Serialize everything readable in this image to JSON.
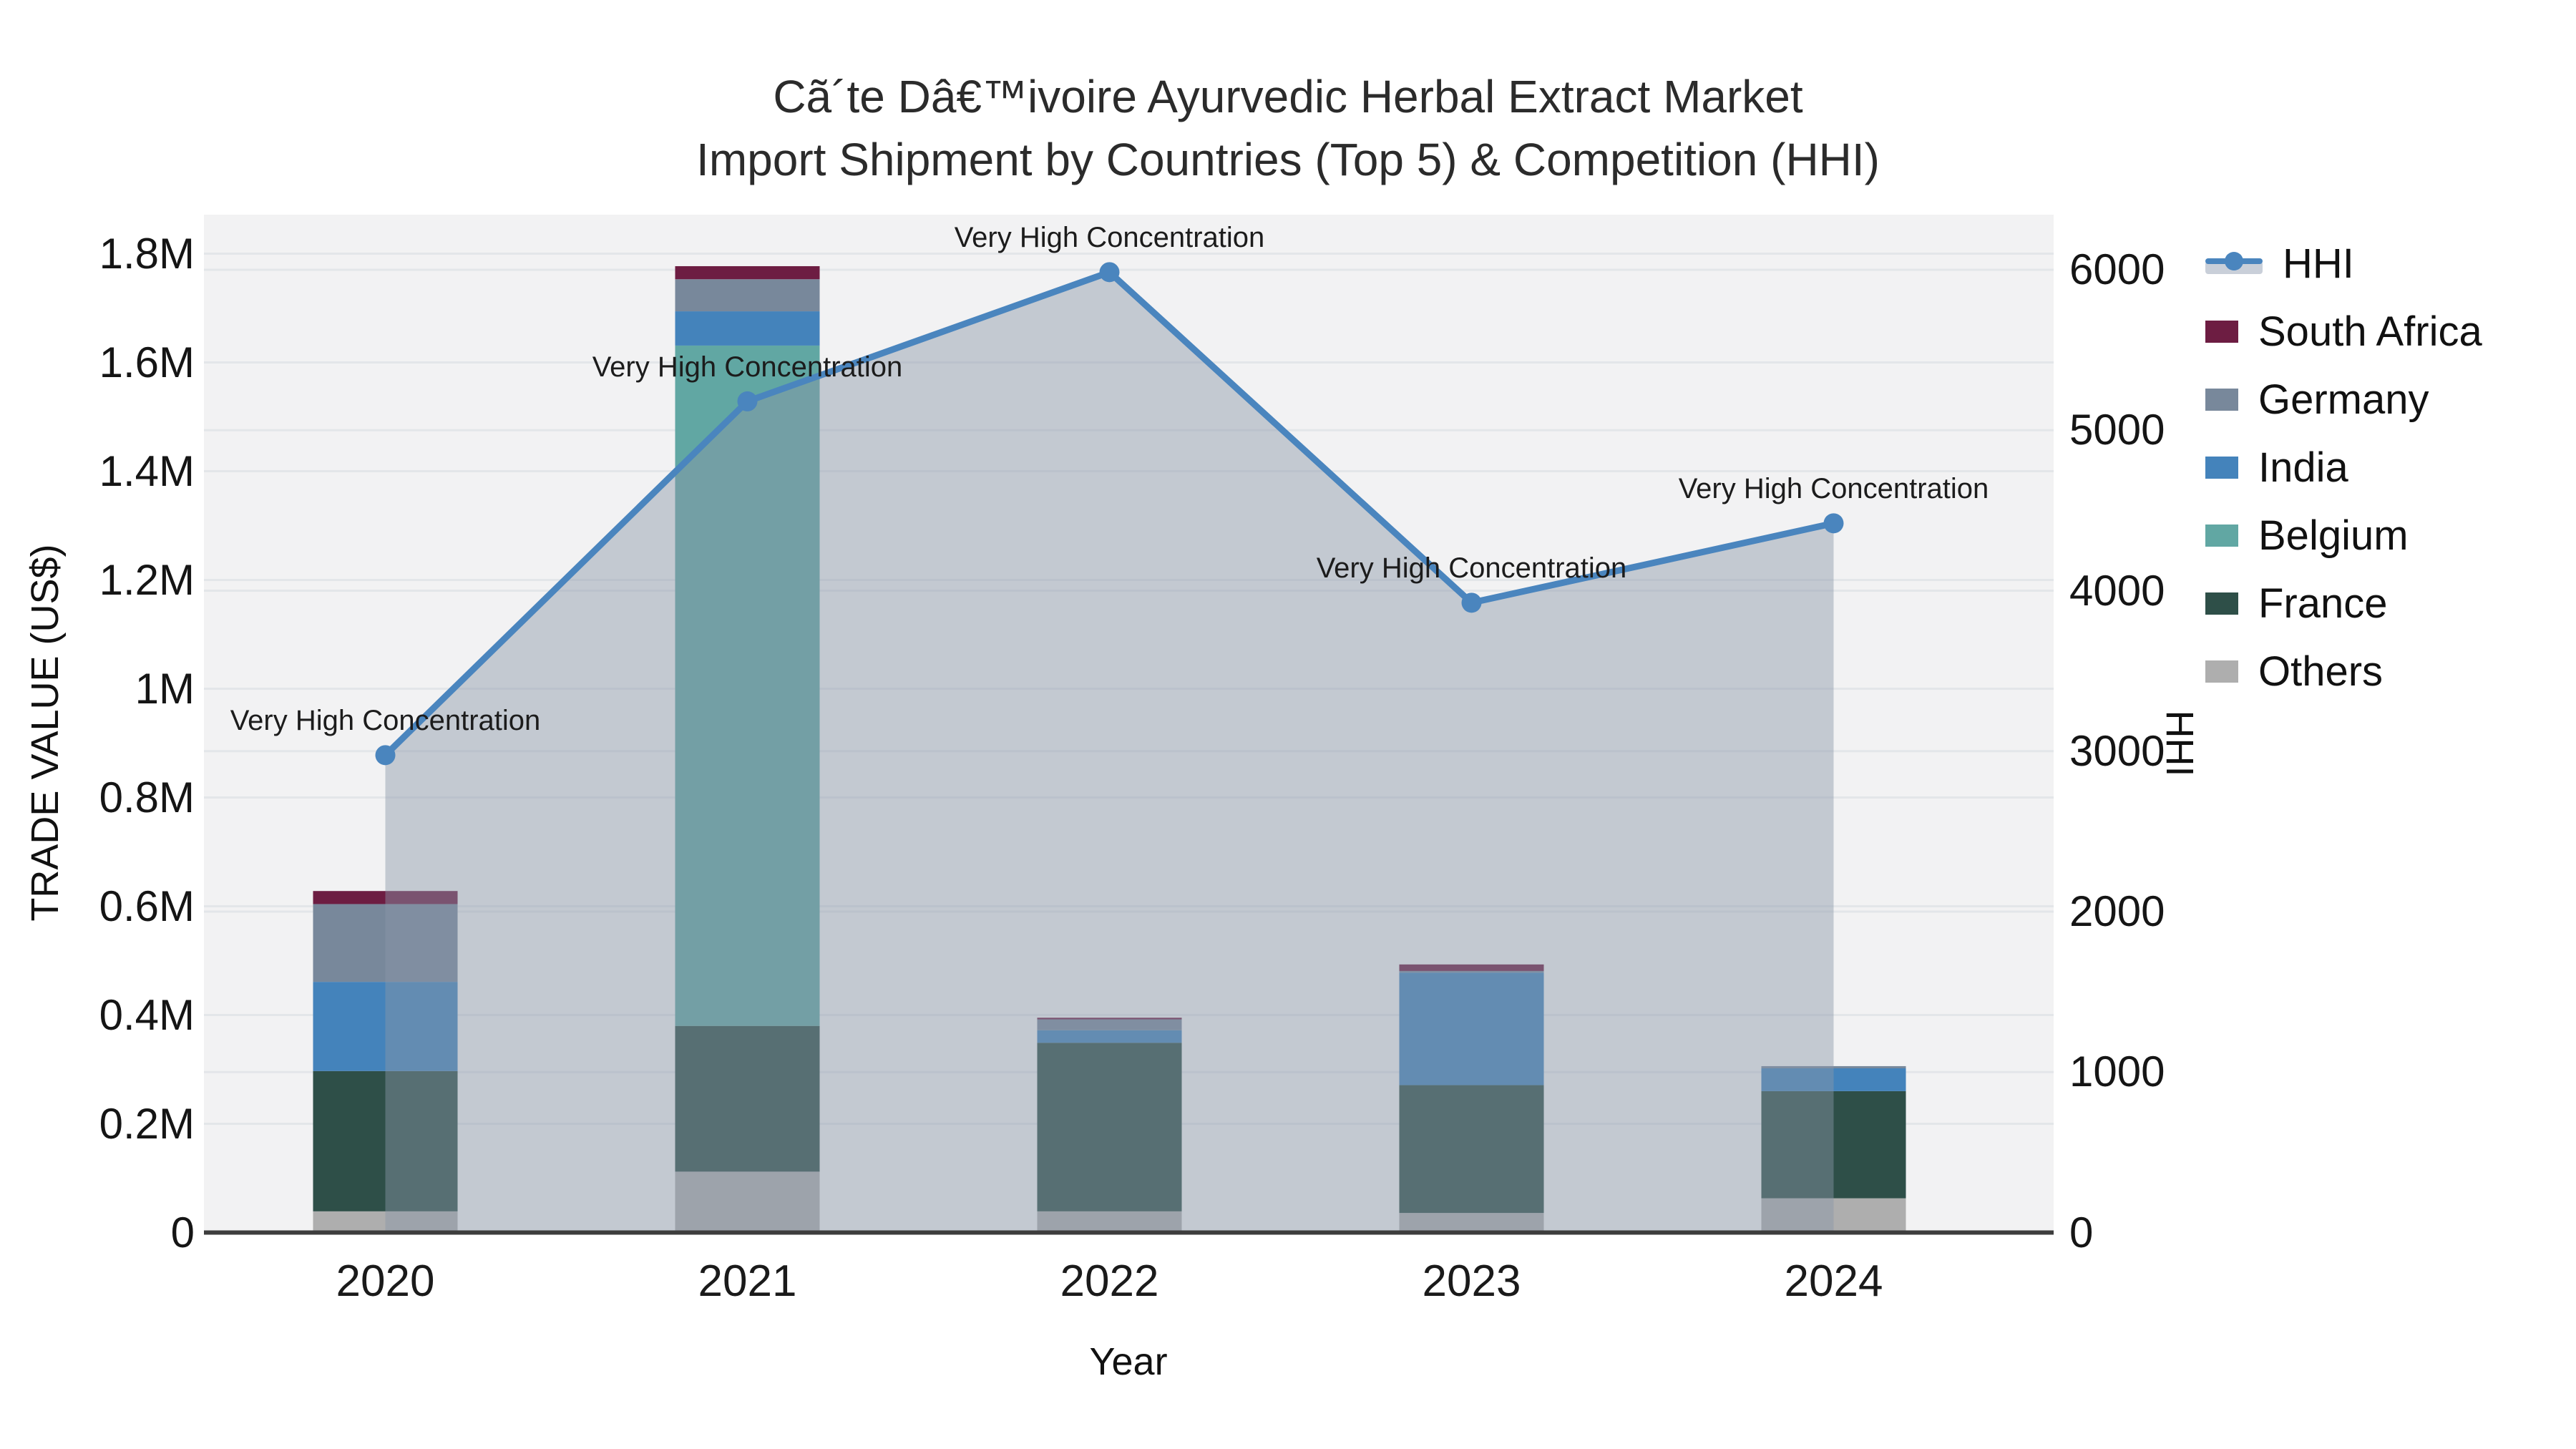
{
  "title": {
    "line1": "Cã´te Dâ€™ivoire Ayurvedic Herbal Extract Market",
    "line2": "Import Shipment by Countries (Top 5) & Competition (HHI)"
  },
  "axes": {
    "x": {
      "title": "Year",
      "categories": [
        "2020",
        "2021",
        "2022",
        "2023",
        "2024"
      ]
    },
    "y_left": {
      "title": "TRADE VALUE (US$)",
      "tick_labels": [
        "0",
        "0.2M",
        "0.4M",
        "0.6M",
        "0.8M",
        "1M",
        "1.2M",
        "1.4M",
        "1.6M",
        "1.8M"
      ],
      "tick_values": [
        0,
        200000,
        400000,
        600000,
        800000,
        1000000,
        1200000,
        1400000,
        1600000,
        1800000
      ]
    },
    "y_right": {
      "title": "HHI",
      "tick_labels": [
        "0",
        "1000",
        "2000",
        "3000",
        "4000",
        "5000",
        "6000"
      ],
      "tick_values": [
        0,
        1000,
        2000,
        3000,
        4000,
        5000,
        6000
      ]
    }
  },
  "legend": {
    "items": [
      {
        "label": "HHI",
        "type": "line",
        "color": "#4a85be"
      },
      {
        "label": "South Africa",
        "type": "swatch",
        "color": "#6d1d42"
      },
      {
        "label": "Germany",
        "type": "swatch",
        "color": "#78889b"
      },
      {
        "label": "India",
        "type": "swatch",
        "color": "#4483bb"
      },
      {
        "label": "Belgium",
        "type": "swatch",
        "color": "#61a7a3"
      },
      {
        "label": "France",
        "type": "swatch",
        "color": "#2e4f48"
      },
      {
        "label": "Others",
        "type": "swatch",
        "color": "#aeaeae"
      }
    ]
  },
  "chart_data": {
    "type": [
      "bar",
      "line"
    ],
    "categories": [
      "2020",
      "2021",
      "2022",
      "2023",
      "2024"
    ],
    "bar_stack_order_bottom_to_top": [
      "Others",
      "France",
      "Belgium",
      "India",
      "Germany",
      "South Africa"
    ],
    "series": [
      {
        "name": "Others",
        "color": "#aeaeae",
        "values": [
          39000,
          112000,
          39000,
          36000,
          63000
        ]
      },
      {
        "name": "France",
        "color": "#2e4f48",
        "values": [
          258000,
          268000,
          310000,
          235000,
          197000
        ]
      },
      {
        "name": "Belgium",
        "color": "#61a7a3",
        "values": [
          0,
          1251000,
          0,
          0,
          0
        ]
      },
      {
        "name": "India",
        "color": "#4483bb",
        "values": [
          164000,
          63000,
          23000,
          207000,
          42000
        ]
      },
      {
        "name": "Germany",
        "color": "#78889b",
        "values": [
          143000,
          59000,
          20000,
          3000,
          4000
        ]
      },
      {
        "name": "South Africa",
        "color": "#6d1d42",
        "values": [
          24000,
          24000,
          3000,
          12000,
          0
        ]
      }
    ],
    "hhi": {
      "name": "HHI",
      "color": "#4a85be",
      "area_fill": "rgba(137,150,169,0.45)",
      "values": [
        2975,
        5180,
        5985,
        3925,
        4420
      ]
    },
    "annotations": [
      {
        "x": "2020",
        "text": "Very High Concentration"
      },
      {
        "x": "2021",
        "text": "Very High Concentration"
      },
      {
        "x": "2022",
        "text": "Very High Concentration"
      },
      {
        "x": "2023",
        "text": "Very High Concentration"
      },
      {
        "x": "2024",
        "text": "Very High Concentration"
      }
    ],
    "xlabel": "Year",
    "ylabel_left": "TRADE VALUE (US$)",
    "ylabel_right": "HHI",
    "ylim_left": [
      0,
      1870000
    ],
    "ylim_right": [
      0,
      6235
    ],
    "plot_background": "#f2f2f3",
    "gridline_color": "#e3e6e9",
    "axis_line_color": "#3d3d3d",
    "grid": true,
    "legend_position": "right"
  }
}
